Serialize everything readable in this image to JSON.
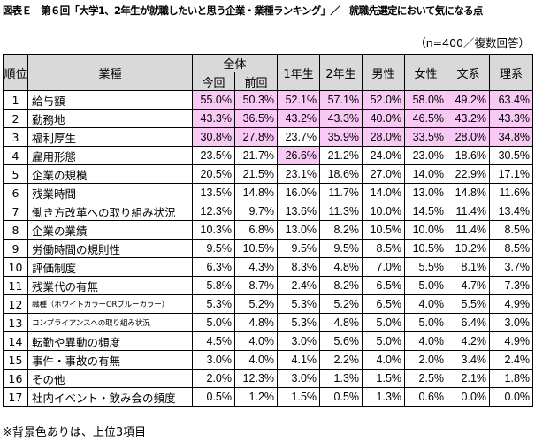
{
  "title": "図表Ｅ　第６回「大学1、2年生が就職したいと思う企業・業種ランキング」／　就職先選定において気になる点",
  "sample_note": "（n=400／複数回答）",
  "footnote": "※背景色ありは、上位3項目",
  "highlight_color": "#f8c9f4",
  "header_color": "#d9d9d9",
  "headers": {
    "rank": "順位",
    "item": "業種",
    "overall": "全体",
    "current": "今回",
    "previous": "前回",
    "year1": "1年生",
    "year2": "2年生",
    "male": "男性",
    "female": "女性",
    "humanities": "文系",
    "science": "理系"
  },
  "rows": [
    {
      "rank": "1",
      "item": "給与額",
      "values": [
        "55.0%",
        "50.3%",
        "52.1%",
        "57.1%",
        "52.0%",
        "58.0%",
        "49.2%",
        "63.4%"
      ],
      "highlight": [
        1,
        1,
        1,
        1,
        1,
        1,
        1,
        1
      ]
    },
    {
      "rank": "2",
      "item": "勤務地",
      "values": [
        "43.3%",
        "36.5%",
        "43.2%",
        "43.3%",
        "40.0%",
        "46.5%",
        "43.2%",
        "43.3%"
      ],
      "highlight": [
        1,
        1,
        1,
        1,
        1,
        1,
        1,
        1
      ]
    },
    {
      "rank": "3",
      "item": "福利厚生",
      "values": [
        "30.8%",
        "27.8%",
        "23.7%",
        "35.9%",
        "28.0%",
        "33.5%",
        "28.0%",
        "34.8%"
      ],
      "highlight": [
        1,
        1,
        0,
        1,
        1,
        1,
        1,
        1
      ]
    },
    {
      "rank": "4",
      "item": "雇用形態",
      "values": [
        "23.5%",
        "21.7%",
        "26.6%",
        "21.2%",
        "24.0%",
        "23.0%",
        "18.6%",
        "30.5%"
      ],
      "highlight": [
        0,
        0,
        1,
        0,
        0,
        0,
        0,
        0
      ]
    },
    {
      "rank": "5",
      "item": "企業の規模",
      "values": [
        "20.5%",
        "21.5%",
        "23.1%",
        "18.6%",
        "27.0%",
        "14.0%",
        "22.9%",
        "17.1%"
      ],
      "highlight": [
        0,
        0,
        0,
        0,
        0,
        0,
        0,
        0
      ]
    },
    {
      "rank": "6",
      "item": "残業時間",
      "values": [
        "13.5%",
        "14.8%",
        "16.0%",
        "11.7%",
        "14.0%",
        "13.0%",
        "14.8%",
        "11.6%"
      ],
      "highlight": [
        0,
        0,
        0,
        0,
        0,
        0,
        0,
        0
      ]
    },
    {
      "rank": "7",
      "item": "働き方改革への取り組み状況",
      "values": [
        "12.3%",
        "9.7%",
        "13.6%",
        "11.3%",
        "10.0%",
        "14.5%",
        "11.4%",
        "13.4%"
      ],
      "highlight": [
        0,
        0,
        0,
        0,
        0,
        0,
        0,
        0
      ]
    },
    {
      "rank": "8",
      "item": "企業の業績",
      "values": [
        "10.3%",
        "6.8%",
        "13.0%",
        "8.2%",
        "10.5%",
        "10.0%",
        "11.4%",
        "8.5%"
      ],
      "highlight": [
        0,
        0,
        0,
        0,
        0,
        0,
        0,
        0
      ]
    },
    {
      "rank": "9",
      "item": "労働時間の規則性",
      "values": [
        "9.5%",
        "10.5%",
        "9.5%",
        "9.5%",
        "8.5%",
        "10.5%",
        "10.2%",
        "8.5%"
      ],
      "highlight": [
        0,
        0,
        0,
        0,
        0,
        0,
        0,
        0
      ]
    },
    {
      "rank": "10",
      "item": "評価制度",
      "values": [
        "6.3%",
        "4.3%",
        "8.3%",
        "4.8%",
        "7.0%",
        "5.5%",
        "8.1%",
        "3.7%"
      ],
      "highlight": [
        0,
        0,
        0,
        0,
        0,
        0,
        0,
        0
      ]
    },
    {
      "rank": "11",
      "item": "残業代の有無",
      "values": [
        "5.8%",
        "8.7%",
        "2.4%",
        "8.2%",
        "6.5%",
        "5.0%",
        "4.7%",
        "7.3%"
      ],
      "highlight": [
        0,
        0,
        0,
        0,
        0,
        0,
        0,
        0
      ]
    },
    {
      "rank": "12",
      "item": "職種（ホワイトカラーORブルーカラー）",
      "small": true,
      "values": [
        "5.3%",
        "5.2%",
        "5.3%",
        "5.2%",
        "6.5%",
        "4.0%",
        "5.5%",
        "4.9%"
      ],
      "highlight": [
        0,
        0,
        0,
        0,
        0,
        0,
        0,
        0
      ]
    },
    {
      "rank": "13",
      "item": "コンプライアンスへの取り組み状況",
      "small": true,
      "values": [
        "5.0%",
        "4.8%",
        "5.3%",
        "4.8%",
        "5.0%",
        "5.0%",
        "6.4%",
        "3.0%"
      ],
      "highlight": [
        0,
        0,
        0,
        0,
        0,
        0,
        0,
        0
      ]
    },
    {
      "rank": "14",
      "item": "転勤や異動の頻度",
      "values": [
        "4.5%",
        "4.0%",
        "3.0%",
        "5.6%",
        "5.0%",
        "4.0%",
        "4.2%",
        "4.9%"
      ],
      "highlight": [
        0,
        0,
        0,
        0,
        0,
        0,
        0,
        0
      ]
    },
    {
      "rank": "15",
      "item": "事件・事故の有無",
      "values": [
        "3.0%",
        "4.0%",
        "4.1%",
        "2.2%",
        "4.0%",
        "2.0%",
        "3.4%",
        "2.4%"
      ],
      "highlight": [
        0,
        0,
        0,
        0,
        0,
        0,
        0,
        0
      ]
    },
    {
      "rank": "16",
      "item": "その他",
      "values": [
        "2.0%",
        "12.3%",
        "3.0%",
        "1.3%",
        "1.5%",
        "2.5%",
        "2.1%",
        "1.8%"
      ],
      "highlight": [
        0,
        0,
        0,
        0,
        0,
        0,
        0,
        0
      ]
    },
    {
      "rank": "17",
      "item": "社内イベント・飲み会の頻度",
      "values": [
        "0.5%",
        "1.2%",
        "1.5%",
        "0.5%",
        "1.3%",
        "0.6%",
        "0.0%",
        "0.0%"
      ],
      "highlight": [
        0,
        0,
        0,
        0,
        0,
        0,
        0,
        0
      ]
    }
  ]
}
